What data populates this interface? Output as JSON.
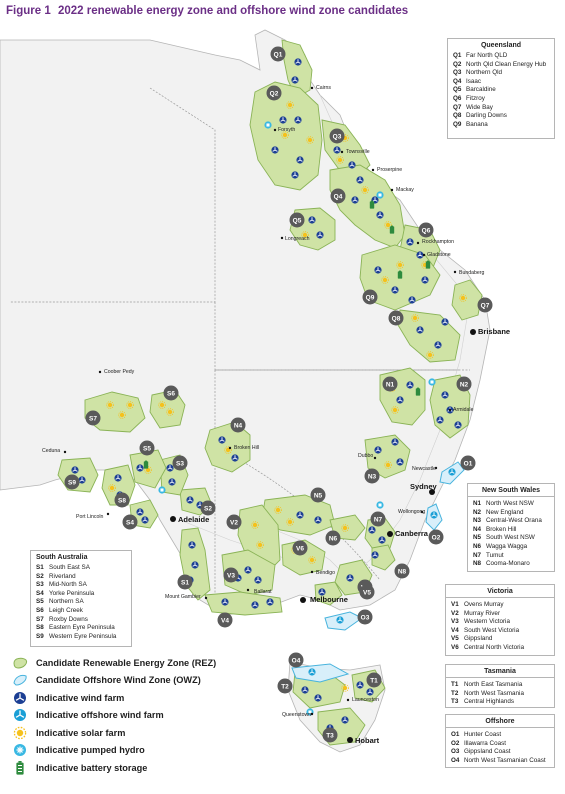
{
  "figure": {
    "number": "Figure 1",
    "title": "2022 renewable energy zone and offshore wind zone candidates"
  },
  "colors": {
    "title": "#6b2f86",
    "rez_fill": "#cfe3a5",
    "rez_stroke": "#8ab356",
    "owz_fill": "#d8effa",
    "owz_stroke": "#47b3dd",
    "wind": "#1c3f94",
    "offshore_wind": "#1a9fd6",
    "solar": "#f5c11c",
    "hydro": "#39b8e3",
    "battery": "#2e8b3e",
    "zone_badge": "#5a5a5a"
  },
  "zones": {
    "Q1": "Q1",
    "Q2": "Q2",
    "Q3": "Q3",
    "Q4": "Q4",
    "Q5": "Q5",
    "Q6": "Q6",
    "Q7": "Q7",
    "Q8": "Q8",
    "Q9": "Q9",
    "N1": "N1",
    "N2": "N2",
    "N3": "N3",
    "N4": "N4",
    "N5": "N5",
    "N6": "N6",
    "N7": "N7",
    "N8": "N8",
    "V1": "V1",
    "V2": "V2",
    "V3": "V3",
    "V4": "V4",
    "V5": "V5",
    "V6": "V6",
    "S1": "S1",
    "S2": "S2",
    "S3": "S3",
    "S4": "S4",
    "S5": "S5",
    "S6": "S6",
    "S7": "S7",
    "S8": "S8",
    "S9": "S9",
    "T1": "T1",
    "T2": "T2",
    "T3": "T3",
    "O1": "O1",
    "O2": "O2",
    "O3": "O3",
    "O4": "O4"
  },
  "cities": {
    "cairns": "Cairns",
    "townsville": "Townsville",
    "forsyth": "Forsyth",
    "proserpine": "Proserpine",
    "mackay": "Mackay",
    "rockhampton": "Rockhampton",
    "gladstone": "Gladstone",
    "longreach": "Longreach",
    "bundaberg": "Bundaberg",
    "brisbane": "Brisbane",
    "armidale": "Armidale",
    "broken_hill": "Broken Hill",
    "dubbo": "Dubbo",
    "newcastle": "Newcastle",
    "sydney": "Sydney",
    "wollongong": "Wollongong",
    "canberra": "Canberra",
    "bendigo": "Bendigo",
    "melbourne": "Melbourne",
    "ballarat": "Ballarat",
    "mount_gambier": "Mount Gambier",
    "adelaide": "Adelaide",
    "port_lincoln": "Port Lincoln",
    "ceduna": "Ceduna",
    "coober_pedy": "Coober Pedy",
    "launceston": "Launceston",
    "queenstown": "Queenstown",
    "hobart": "Hobart"
  },
  "legend_queensland": {
    "title": "Queensland",
    "items": [
      {
        "code": "Q1",
        "name": "Far North QLD"
      },
      {
        "code": "Q2",
        "name": "North Qld Clean Energy Hub"
      },
      {
        "code": "Q3",
        "name": "Northern Qld"
      },
      {
        "code": "Q4",
        "name": "Isaac"
      },
      {
        "code": "Q5",
        "name": "Barcaldine"
      },
      {
        "code": "Q6",
        "name": "Fitzroy"
      },
      {
        "code": "Q7",
        "name": "Wide Bay"
      },
      {
        "code": "Q8",
        "name": "Darling Downs"
      },
      {
        "code": "Q9",
        "name": "Banana"
      }
    ]
  },
  "legend_nsw": {
    "title": "New South Wales",
    "items": [
      {
        "code": "N1",
        "name": "North West NSW"
      },
      {
        "code": "N2",
        "name": "New England"
      },
      {
        "code": "N3",
        "name": "Central-West Orana"
      },
      {
        "code": "N4",
        "name": "Broken Hill"
      },
      {
        "code": "N5",
        "name": "South West NSW"
      },
      {
        "code": "N6",
        "name": "Wagga Wagga"
      },
      {
        "code": "N7",
        "name": "Tumut"
      },
      {
        "code": "N8",
        "name": "Cooma-Monaro"
      }
    ]
  },
  "legend_victoria": {
    "title": "Victoria",
    "items": [
      {
        "code": "V1",
        "name": "Ovens Murray"
      },
      {
        "code": "V2",
        "name": "Murray River"
      },
      {
        "code": "V3",
        "name": "Western Victoria"
      },
      {
        "code": "V4",
        "name": "South West Victoria"
      },
      {
        "code": "V5",
        "name": "Gippsland"
      },
      {
        "code": "V6",
        "name": "Central North Victoria"
      }
    ]
  },
  "legend_tasmania": {
    "title": "Tasmania",
    "items": [
      {
        "code": "T1",
        "name": "North East Tasmania"
      },
      {
        "code": "T2",
        "name": "North West Tasmania"
      },
      {
        "code": "T3",
        "name": "Central Highlands"
      }
    ]
  },
  "legend_offshore": {
    "title": "Offshore",
    "items": [
      {
        "code": "O1",
        "name": "Hunter Coast"
      },
      {
        "code": "O2",
        "name": "Illawarra Coast"
      },
      {
        "code": "O3",
        "name": "Gippsland Coast"
      },
      {
        "code": "O4",
        "name": "North West Tasmanian Coast"
      }
    ]
  },
  "legend_sa": {
    "title": "South Australia",
    "items": [
      {
        "code": "S1",
        "name": "South East SA"
      },
      {
        "code": "S2",
        "name": "Riverland"
      },
      {
        "code": "S3",
        "name": "Mid-North SA"
      },
      {
        "code": "S4",
        "name": "Yorke Peninsula"
      },
      {
        "code": "S5",
        "name": "Northern SA"
      },
      {
        "code": "S6",
        "name": "Leigh Creek"
      },
      {
        "code": "S7",
        "name": "Roxby Downs"
      },
      {
        "code": "S8",
        "name": "Eastern Eyre Peninsula"
      },
      {
        "code": "S9",
        "name": "Western Eyre Peninsula"
      }
    ]
  },
  "map_key": {
    "rez": "Candidate Renewable Energy Zone (REZ)",
    "owz": "Candidate Offshore Wind Zone (OWZ)",
    "wind": "Indicative wind farm",
    "offshore_wind": "Indicative offshore wind farm",
    "solar": "Indicative solar farm",
    "hydro": "Indicative pumped hydro",
    "battery": "Indicative battery storage"
  }
}
